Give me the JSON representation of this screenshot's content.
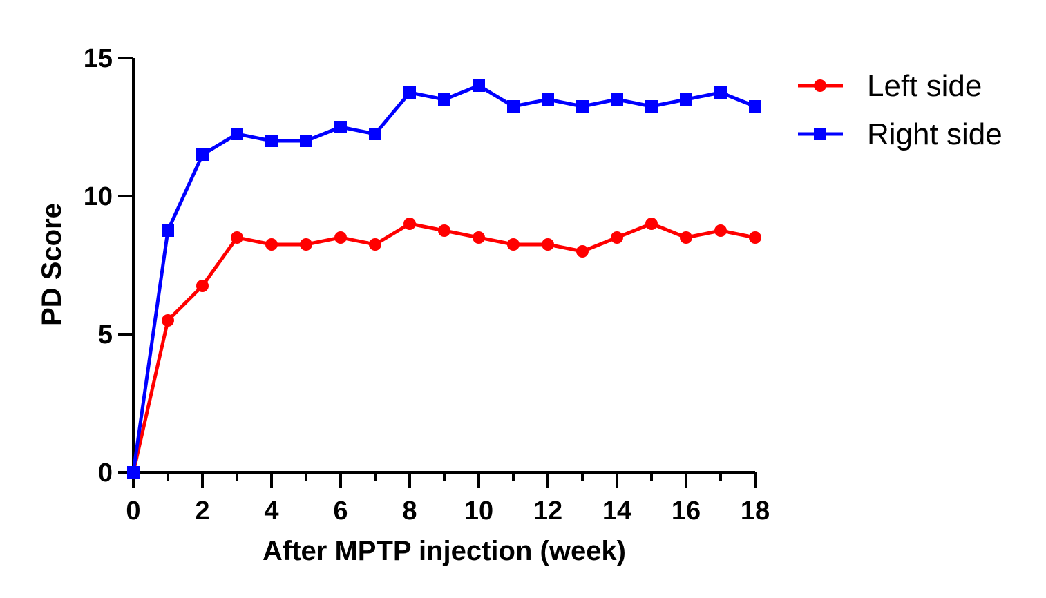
{
  "chart_data": {
    "type": "line",
    "xlabel": "After MPTP injection (week)",
    "ylabel": "PD Score",
    "xlim": [
      0,
      18
    ],
    "ylim": [
      0,
      15
    ],
    "xticks": [
      "0",
      "2",
      "4",
      "6",
      "8",
      "10",
      "12",
      "14",
      "16",
      "18"
    ],
    "yticks": [
      "0",
      "5",
      "10",
      "15"
    ],
    "grid": false,
    "legend_position": "top-right outside",
    "x": [
      0,
      1,
      2,
      3,
      4,
      5,
      6,
      7,
      8,
      9,
      10,
      11,
      12,
      13,
      14,
      15,
      16,
      17,
      18
    ],
    "series": [
      {
        "name": "Left side",
        "color": "#ff0000",
        "marker": "circle",
        "values": [
          0,
          5.5,
          6.75,
          8.5,
          8.25,
          8.25,
          8.5,
          8.25,
          9.0,
          8.75,
          8.5,
          8.25,
          8.25,
          8.0,
          8.5,
          9.0,
          8.5,
          8.75,
          8.5
        ]
      },
      {
        "name": "Right side",
        "color": "#0000ff",
        "marker": "square",
        "values": [
          0,
          8.75,
          11.5,
          12.25,
          12.0,
          12.0,
          12.5,
          12.25,
          13.75,
          13.5,
          14.0,
          13.25,
          13.5,
          13.25,
          13.5,
          13.25,
          13.5,
          13.75,
          13.25
        ]
      }
    ]
  }
}
